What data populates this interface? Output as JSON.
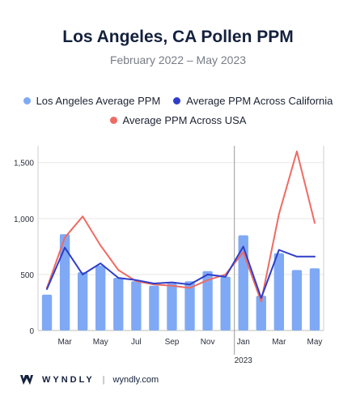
{
  "header": {
    "title": "Los Angeles, CA Pollen PPM",
    "subtitle": "February 2022 – May 2023"
  },
  "legend": {
    "bars_label": "Los Angeles Average PPM",
    "ca_label": "Average PPM Across California",
    "usa_label": "Average PPM Across USA"
  },
  "colors": {
    "bars": "#7fa9f5",
    "ca_line": "#2f3ec8",
    "usa_line": "#ee6b63",
    "grid": "#e8e8e8",
    "axis_text": "#2a2f3a"
  },
  "footer": {
    "brand": "WYNDLY",
    "separator": "|",
    "domain": "wyndly.com"
  },
  "chart_data": {
    "type": "bar",
    "categories": [
      "Feb 2022",
      "Mar 2022",
      "Apr 2022",
      "May 2022",
      "Jun 2022",
      "Jul 2022",
      "Aug 2022",
      "Sep 2022",
      "Oct 2022",
      "Nov 2022",
      "Dec 2022",
      "Jan 2023",
      "Feb 2023",
      "Mar 2023",
      "Apr 2023",
      "May 2023"
    ],
    "x_tick_labels": [
      "Mar",
      "May",
      "Jul",
      "Sep",
      "Nov",
      "Jan",
      "Mar",
      "May"
    ],
    "x_tick_indices": [
      1,
      3,
      5,
      7,
      9,
      11,
      13,
      15
    ],
    "year_label": "2023",
    "year_marker_index": 11,
    "series": [
      {
        "name": "Los Angeles Average PPM",
        "kind": "bar",
        "values": [
          320,
          860,
          520,
          580,
          470,
          440,
          400,
          420,
          440,
          530,
          480,
          850,
          310,
          690,
          540,
          555
        ]
      },
      {
        "name": "Average PPM Across California",
        "kind": "line",
        "values": [
          370,
          740,
          500,
          600,
          470,
          450,
          420,
          430,
          410,
          500,
          480,
          750,
          290,
          720,
          660,
          660
        ]
      },
      {
        "name": "Average PPM Across USA",
        "kind": "line",
        "values": [
          380,
          830,
          1020,
          760,
          540,
          440,
          410,
          400,
          380,
          450,
          500,
          700,
          260,
          1040,
          1600,
          960
        ]
      }
    ],
    "yticks": [
      0,
      500,
      1000,
      1500
    ],
    "ytick_labels": [
      "0",
      "500",
      "1,000",
      "1,500"
    ],
    "ylim": [
      0,
      1650
    ],
    "grid": true,
    "legend_position": "top"
  }
}
